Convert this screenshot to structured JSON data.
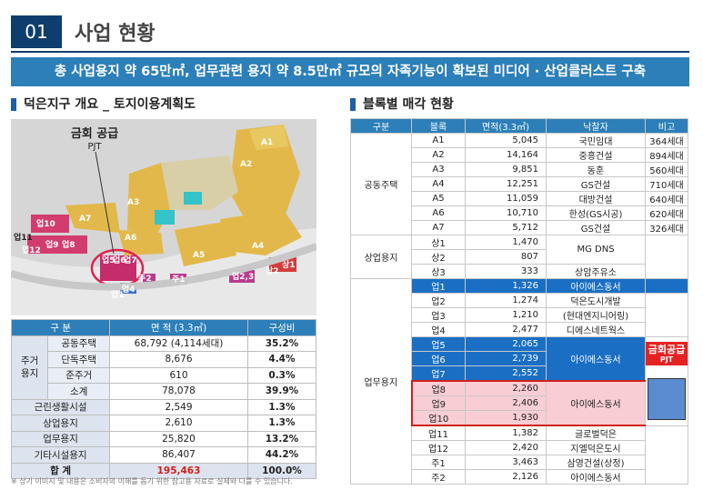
{
  "header": {
    "number": "01",
    "title": "사업 현황"
  },
  "banner": "총 사업용지 약 65만㎡, 업무관련 용지 약 8.5만㎡ 규모의 자족기능이 확보된 미디어 · 산업클러스트 구축",
  "left_title": "덕은지구 개요 _ 토지이용계획도",
  "right_title": "블록별 매각 현황",
  "map": {
    "callout": "금회 공급",
    "callout_sub": "PJT",
    "labels": [
      "A1",
      "A2",
      "A3",
      "A4",
      "A5",
      "A6",
      "A7",
      "상1",
      "상2",
      "업2,3",
      "주1",
      "주2",
      "업4",
      "업1",
      "업5",
      "업6",
      "업7",
      "업8",
      "업9",
      "업10",
      "업11",
      "업12"
    ]
  },
  "land_table": {
    "headers": [
      "구 분",
      "면 적 (3.3㎡)",
      "구성비"
    ],
    "housing_group": "주거\n용지",
    "rows": [
      {
        "label": "공동주택",
        "area": "68,792 (4,114세대)",
        "ratio": "35.2%"
      },
      {
        "label": "단독주택",
        "area": "8,676",
        "ratio": "4.4%"
      },
      {
        "label": "준주거",
        "area": "610",
        "ratio": "0.3%"
      },
      {
        "label": "소계",
        "area": "78,078",
        "ratio": "39.9%"
      },
      {
        "label": "근린생활시설",
        "area": "2,549",
        "ratio": "1.3%"
      },
      {
        "label": "상업용지",
        "area": "2,610",
        "ratio": "1.3%"
      },
      {
        "label": "업무용지",
        "area": "25,820",
        "ratio": "13.2%"
      },
      {
        "label": "기타시설용지",
        "area": "86,407",
        "ratio": "44.2%"
      }
    ],
    "total": {
      "label": "합 계",
      "area": "195,463",
      "ratio": "100.0%"
    }
  },
  "block_table": {
    "headers": [
      "구분",
      "블록",
      "면적(3.3㎡)",
      "낙찰자",
      "비고"
    ],
    "groups": {
      "housing": "공동주택",
      "commercial": "상업용지",
      "business": "업무용지"
    },
    "housing": [
      {
        "block": "A1",
        "area": "5,045",
        "winner": "국민임대",
        "note": "364세대"
      },
      {
        "block": "A2",
        "area": "14,164",
        "winner": "중흥건설",
        "note": "894세대"
      },
      {
        "block": "A3",
        "area": "9,851",
        "winner": "동훈",
        "note": "560세대"
      },
      {
        "block": "A4",
        "area": "12,251",
        "winner": "GS건설",
        "note": "710세대"
      },
      {
        "block": "A5",
        "area": "11,059",
        "winner": "대방건설",
        "note": "640세대"
      },
      {
        "block": "A6",
        "area": "10,710",
        "winner": "한성(GS시공)",
        "note": "620세대"
      },
      {
        "block": "A7",
        "area": "5,712",
        "winner": "GS건설",
        "note": "326세대"
      }
    ],
    "commercial": [
      {
        "block": "상1",
        "area": "1,470"
      },
      {
        "block": "상2",
        "area": "807"
      },
      {
        "block": "상3",
        "area": "333",
        "winner": "상암주유소"
      }
    ],
    "commercial_winner": "MG DNS",
    "business": [
      {
        "block": "업1",
        "area": "1,326",
        "winner": "아이에스동서"
      },
      {
        "block": "업2",
        "area": "1,274",
        "winner": "덕은도시개발"
      },
      {
        "block": "업3",
        "area": "1,210",
        "winner": "(현대엔지니어링)"
      },
      {
        "block": "업4",
        "area": "2,477",
        "winner": "디에스네트웍스"
      },
      {
        "block": "업5",
        "area": "2,065"
      },
      {
        "block": "업6",
        "area": "2,739",
        "winner": "아이에스동서"
      },
      {
        "block": "업7",
        "area": "2,552"
      },
      {
        "block": "업8",
        "area": "2,260"
      },
      {
        "block": "업9",
        "area": "2,406",
        "winner": "아이에스동서"
      },
      {
        "block": "업10",
        "area": "1,930"
      },
      {
        "block": "업11",
        "area": "1,382",
        "winner": "글로벌덕은"
      },
      {
        "block": "업12",
        "area": "2,420",
        "winner": "지엘덕은도시"
      },
      {
        "block": "주1",
        "area": "3,463",
        "winner": "삼영건설(상정)"
      },
      {
        "block": "주2",
        "area": "2,126",
        "winner": "아이에스동서"
      }
    ],
    "highlight_label": "금회공급",
    "highlight_sub": "PJT"
  },
  "footnote": "※ 상기 이미지 및 내용은 소비자의 이해를 돕기 위한 참고용 자료로 실제와 다를 수 있습니다."
}
